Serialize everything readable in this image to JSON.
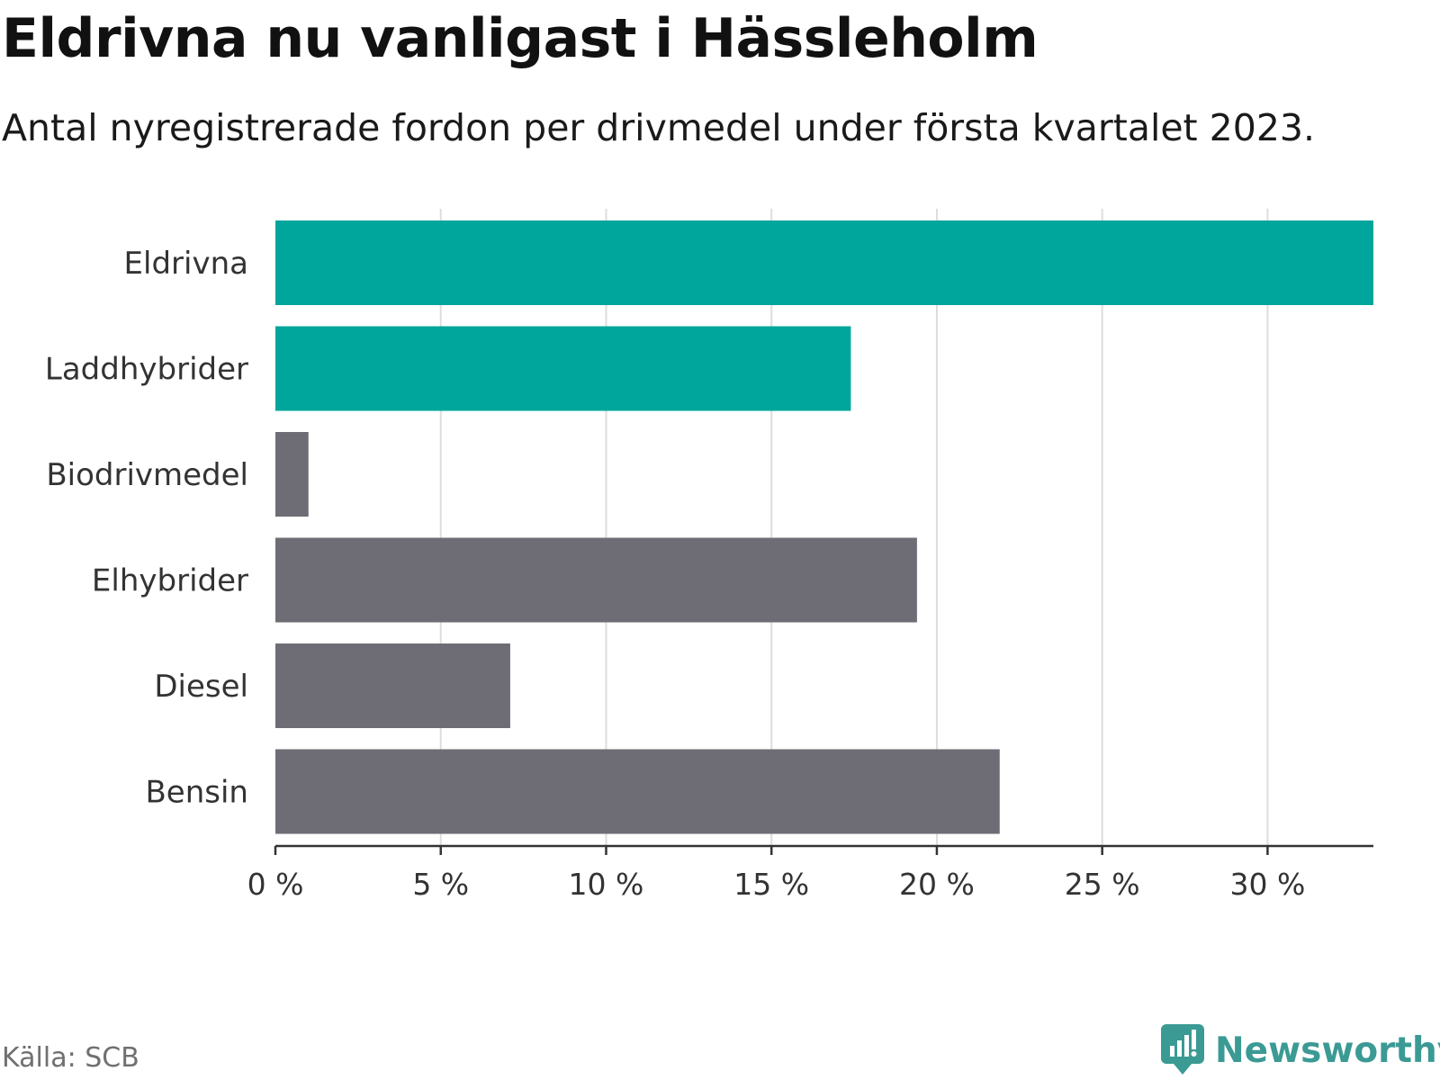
{
  "header": {
    "title": "Eldrivna nu vanligast i Hässleholm",
    "subtitle": "Antal nyregistrerade fordon per drivmedel under första kvartalet 2023."
  },
  "footer": {
    "source": "Källa: SCB",
    "brand": "Newsworthy",
    "brand_icon": "bar-chart-logo-icon"
  },
  "colors": {
    "highlight": "#00a59b",
    "neutral": "#6e6d75",
    "grid": "#dddddd",
    "axis": "#333333",
    "brand": "#3b9a94"
  },
  "chart_data": {
    "type": "bar",
    "orientation": "horizontal",
    "categories": [
      "Eldrivna",
      "Laddhybrider",
      "Biodrivmedel",
      "Elhybrider",
      "Diesel",
      "Bensin"
    ],
    "values": [
      33.2,
      17.4,
      1.0,
      19.4,
      7.1,
      21.9
    ],
    "highlighted": [
      true,
      true,
      false,
      false,
      false,
      false
    ],
    "xlim": [
      0,
      33.2
    ],
    "xticks": [
      0,
      5,
      10,
      15,
      20,
      25,
      30
    ],
    "xtick_labels": [
      "0 %",
      "5 %",
      "10 %",
      "15 %",
      "20 %",
      "25 %",
      "30 %"
    ],
    "unit": "%",
    "grid": "vertical"
  }
}
